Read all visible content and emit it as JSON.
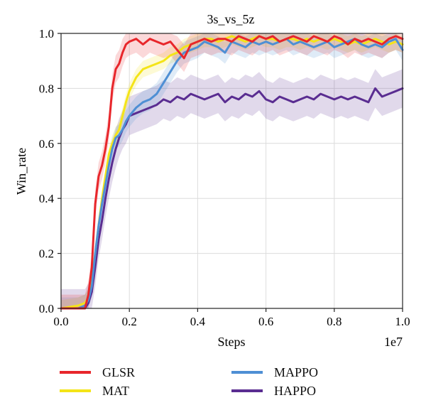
{
  "chart_data": {
    "type": "line",
    "title": "3s_vs_5z",
    "xlabel": "Steps",
    "ylabel": "Win_rate",
    "x_scale_label": "1e7",
    "xlim": [
      0.0,
      1.0
    ],
    "ylim": [
      0.0,
      1.0
    ],
    "xticks": [
      "0.0",
      "0.2",
      "0.4",
      "0.6",
      "0.8",
      "1.0"
    ],
    "yticks": [
      "0.0",
      "0.2",
      "0.4",
      "0.6",
      "0.8",
      "1.0"
    ],
    "grid": true,
    "legend_position": "bottom",
    "x": [
      0.0,
      0.05,
      0.07,
      0.08,
      0.09,
      0.1,
      0.11,
      0.12,
      0.13,
      0.14,
      0.15,
      0.16,
      0.17,
      0.18,
      0.19,
      0.2,
      0.22,
      0.24,
      0.26,
      0.28,
      0.3,
      0.32,
      0.34,
      0.36,
      0.38,
      0.4,
      0.42,
      0.44,
      0.46,
      0.48,
      0.5,
      0.52,
      0.54,
      0.56,
      0.58,
      0.6,
      0.62,
      0.64,
      0.66,
      0.68,
      0.7,
      0.72,
      0.74,
      0.76,
      0.78,
      0.8,
      0.82,
      0.84,
      0.86,
      0.88,
      0.9,
      0.92,
      0.94,
      0.96,
      0.98,
      1.0
    ],
    "series": [
      {
        "name": "GLSR",
        "color": "#e8262b",
        "band": 0.05,
        "values": [
          0.0,
          0.0,
          0.0,
          0.05,
          0.15,
          0.38,
          0.48,
          0.52,
          0.58,
          0.66,
          0.8,
          0.87,
          0.89,
          0.93,
          0.96,
          0.97,
          0.98,
          0.96,
          0.98,
          0.97,
          0.96,
          0.97,
          0.94,
          0.91,
          0.96,
          0.97,
          0.98,
          0.97,
          0.98,
          0.98,
          0.97,
          0.99,
          0.98,
          0.97,
          0.99,
          0.98,
          0.99,
          0.97,
          0.98,
          0.99,
          0.98,
          0.97,
          0.99,
          0.98,
          0.97,
          0.99,
          0.98,
          0.96,
          0.98,
          0.97,
          0.98,
          0.97,
          0.96,
          0.98,
          0.99,
          0.98
        ]
      },
      {
        "name": "MAT",
        "color": "#f4e418",
        "band": 0.03,
        "values": [
          0.0,
          0.01,
          0.02,
          0.04,
          0.1,
          0.2,
          0.3,
          0.4,
          0.48,
          0.56,
          0.6,
          0.63,
          0.65,
          0.7,
          0.75,
          0.79,
          0.84,
          0.87,
          0.88,
          0.89,
          0.9,
          0.92,
          0.93,
          0.95,
          0.96,
          0.97,
          0.98,
          0.98,
          0.97,
          0.98,
          0.99,
          0.98,
          0.97,
          0.98,
          0.99,
          0.98,
          0.98,
          0.97,
          0.98,
          0.98,
          0.97,
          0.98,
          0.97,
          0.98,
          0.97,
          0.98,
          0.97,
          0.96,
          0.97,
          0.96,
          0.97,
          0.98,
          0.97,
          0.96,
          0.97,
          0.96
        ]
      },
      {
        "name": "MAPPO",
        "color": "#4e8fd4",
        "band": 0.04,
        "values": [
          0.0,
          0.0,
          0.01,
          0.03,
          0.08,
          0.2,
          0.3,
          0.38,
          0.45,
          0.52,
          0.58,
          0.62,
          0.63,
          0.65,
          0.68,
          0.7,
          0.73,
          0.75,
          0.76,
          0.78,
          0.82,
          0.86,
          0.9,
          0.93,
          0.94,
          0.95,
          0.97,
          0.96,
          0.95,
          0.93,
          0.97,
          0.96,
          0.95,
          0.97,
          0.96,
          0.97,
          0.96,
          0.97,
          0.98,
          0.96,
          0.97,
          0.96,
          0.95,
          0.96,
          0.97,
          0.95,
          0.96,
          0.97,
          0.98,
          0.96,
          0.95,
          0.96,
          0.95,
          0.97,
          0.98,
          0.94
        ]
      },
      {
        "name": "HAPPO",
        "color": "#5a2d91",
        "band": 0.07,
        "values": [
          0.0,
          0.0,
          0.0,
          0.02,
          0.06,
          0.15,
          0.25,
          0.32,
          0.4,
          0.47,
          0.53,
          0.58,
          0.62,
          0.65,
          0.67,
          0.7,
          0.71,
          0.72,
          0.73,
          0.74,
          0.76,
          0.75,
          0.77,
          0.76,
          0.78,
          0.77,
          0.76,
          0.77,
          0.78,
          0.75,
          0.77,
          0.76,
          0.78,
          0.77,
          0.79,
          0.76,
          0.75,
          0.77,
          0.76,
          0.75,
          0.76,
          0.77,
          0.76,
          0.78,
          0.77,
          0.76,
          0.77,
          0.76,
          0.77,
          0.76,
          0.75,
          0.8,
          0.77,
          0.78,
          0.79,
          0.8
        ]
      }
    ]
  }
}
